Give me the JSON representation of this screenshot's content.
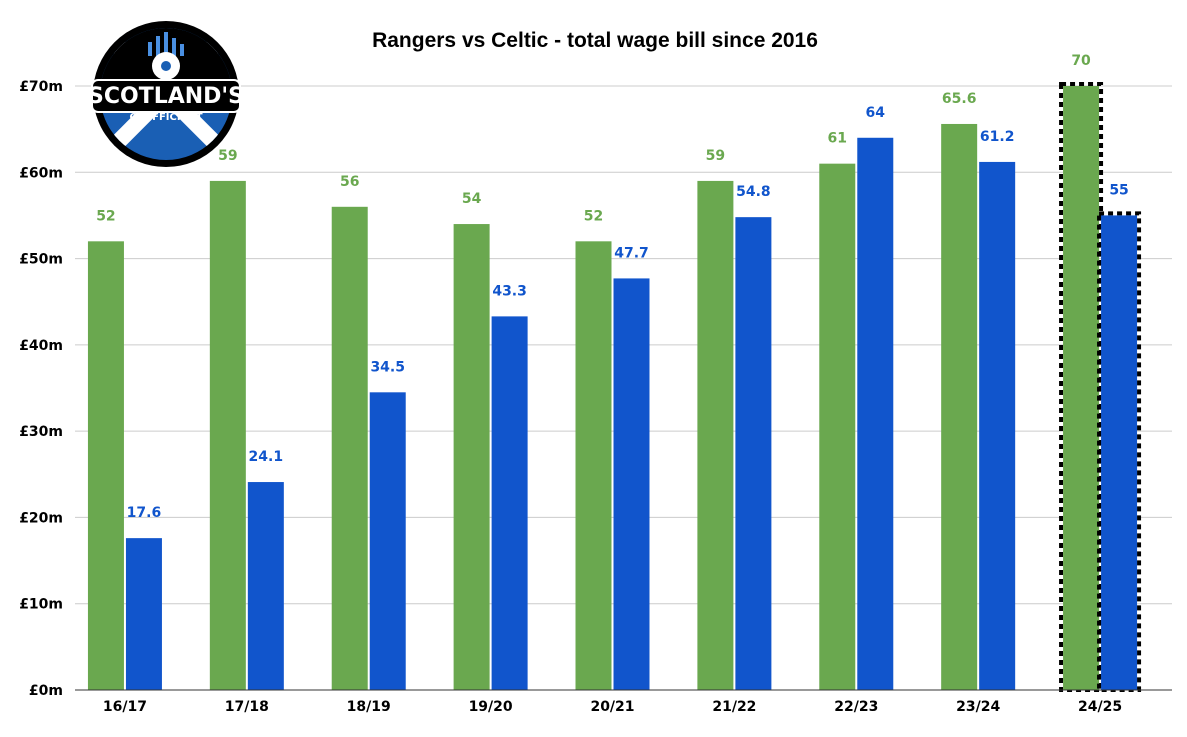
{
  "chart_data": {
    "type": "bar",
    "title": "Rangers vs Celtic - total wage bill since 2016",
    "xlabel": "",
    "ylabel": "",
    "categories": [
      "16/17",
      "17/18",
      "18/19",
      "19/20",
      "20/21",
      "21/22",
      "22/23",
      "23/24",
      "24/25"
    ],
    "series": [
      {
        "values": [
          52,
          59,
          56,
          54,
          52,
          59,
          61,
          65.6,
          70
        ],
        "color": "#6aa84f"
      },
      {
        "values": [
          17.6,
          24.1,
          34.5,
          43.3,
          47.7,
          54.8,
          64,
          61.2,
          55
        ],
        "color": "#1155cc"
      }
    ],
    "data_labels": [
      [
        "52",
        "59",
        "56",
        "54",
        "52",
        "59",
        "61",
        "65.6",
        "70"
      ],
      [
        "17.6",
        "24.1",
        "34.5",
        "43.3",
        "47.7",
        "54.8",
        "64",
        "61.2",
        "55"
      ]
    ],
    "highlighted_category": "24/25",
    "ylim": [
      0,
      70
    ],
    "yticks": [
      0,
      10,
      20,
      30,
      40,
      50,
      60,
      70
    ],
    "ytick_labels": [
      "£0m",
      "£10m",
      "£20m",
      "£30m",
      "£40m",
      "£50m",
      "£60m",
      "£70m"
    ],
    "grid": true,
    "legend": "none"
  },
  "logo": {
    "text_main": "SCOTLAND'S",
    "text_sub": "COEFFICIENT",
    "icon": "football-saltire-badge-icon",
    "colors": {
      "ring": "#000000",
      "blue": "#1a5fb4",
      "white": "#ffffff"
    }
  }
}
